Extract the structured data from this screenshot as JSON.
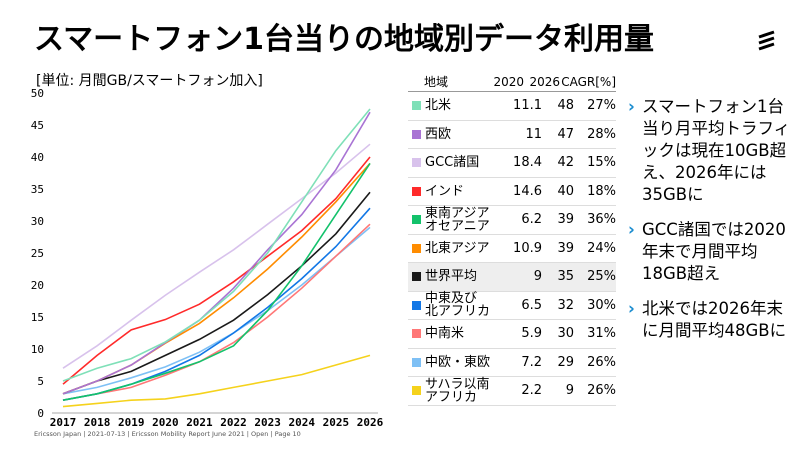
{
  "title": "スマートフォン1台当りの地域別データ利用量",
  "footer": "Ericsson Japan | 2021-07-13 | Ericsson Mobility Report June 2021 | Open | Page 10",
  "table": {
    "headers": [
      "地域",
      "2020",
      "2026",
      "CAGR[%]"
    ],
    "rows": [
      {
        "name": "北米",
        "v2020": "11.1",
        "v2026": "48",
        "cagr": "27%",
        "color": "#7fe0b8"
      },
      {
        "name": "西欧",
        "v2020": "11",
        "v2026": "47",
        "cagr": "28%",
        "color": "#a974d4"
      },
      {
        "name": "GCC諸国",
        "v2020": "18.4",
        "v2026": "42",
        "cagr": "15%",
        "color": "#d8c2ec"
      },
      {
        "name": "インド",
        "v2020": "14.6",
        "v2026": "40",
        "cagr": "18%",
        "color": "#ff2a2a"
      },
      {
        "name": "東南アジア\nオセアニア",
        "v2020": "6.2",
        "v2026": "39",
        "cagr": "36%",
        "color": "#13c26b"
      },
      {
        "name": "北東アジア",
        "v2020": "10.9",
        "v2026": "39",
        "cagr": "24%",
        "color": "#ff8c00"
      },
      {
        "name": "世界平均",
        "v2020": "9",
        "v2026": "35",
        "cagr": "25%",
        "color": "#1a1a1a"
      },
      {
        "name": "中東及び\n北アフリカ",
        "v2020": "6.5",
        "v2026": "32",
        "cagr": "30%",
        "color": "#1277e6"
      },
      {
        "name": "中南米",
        "v2020": "5.9",
        "v2026": "30",
        "cagr": "31%",
        "color": "#ff7777"
      },
      {
        "name": "中欧・東欧",
        "v2020": "7.2",
        "v2026": "29",
        "cagr": "26%",
        "color": "#7ec0f5"
      },
      {
        "name": "サハラ以南\nアフリカ",
        "v2020": "2.2",
        "v2026": "9",
        "cagr": "26%",
        "color": "#f5d21c"
      }
    ]
  },
  "bullets": [
    "スマートフォン1台当り月平均トラフィックは現在10GB超え、2026年には35GBに",
    "GCC諸国では2020年末で月間平均18GB超え",
    "北米では2026年末に月間平均48GBに"
  ],
  "chart_data": {
    "type": "line",
    "title": "スマートフォン1台当りの地域別データ利用量",
    "ylabel": "[単位: 月間GB/スマートフォン加入]",
    "xlabel": "",
    "x": [
      "2017",
      "2018",
      "2019",
      "2020",
      "2021",
      "2022",
      "2023",
      "2024",
      "2025",
      "2026"
    ],
    "ylim": [
      0,
      50
    ],
    "yticks": [
      0,
      5,
      10,
      15,
      20,
      25,
      30,
      35,
      40,
      45,
      50
    ],
    "grid": false,
    "series": [
      {
        "name": "北米",
        "color": "#7fe0b8",
        "values": [
          5,
          7,
          8.5,
          11.1,
          14.5,
          19,
          25,
          33,
          41,
          47.5
        ]
      },
      {
        "name": "西欧",
        "color": "#a974d4",
        "values": [
          3,
          5,
          7.5,
          11,
          14.5,
          19.5,
          25.5,
          31,
          38,
          47
        ]
      },
      {
        "name": "GCC諸国",
        "color": "#d8c2ec",
        "values": [
          7,
          10.5,
          14.5,
          18.4,
          22,
          25.5,
          29.5,
          33.5,
          37.5,
          42
        ]
      },
      {
        "name": "インド",
        "color": "#ff2a2a",
        "values": [
          4.5,
          9,
          13,
          14.6,
          17,
          20.5,
          24.5,
          28.5,
          33.5,
          40
        ]
      },
      {
        "name": "東南アジア オセアニア",
        "color": "#13c26b",
        "values": [
          2,
          3,
          4.5,
          6.2,
          8,
          10.5,
          16,
          23,
          31,
          39
        ]
      },
      {
        "name": "北東アジア",
        "color": "#ff8c00",
        "values": [
          3,
          5,
          7.5,
          10.9,
          14,
          18,
          22.5,
          27.5,
          33,
          39
        ]
      },
      {
        "name": "世界平均",
        "color": "#1a1a1a",
        "values": [
          3,
          5,
          6.5,
          9,
          11.5,
          14.5,
          18.5,
          23,
          28,
          34.5
        ]
      },
      {
        "name": "中東及び北アフリカ",
        "color": "#1277e6",
        "values": [
          2,
          3,
          4.5,
          6.5,
          9,
          12.5,
          16.5,
          21,
          26,
          32
        ]
      },
      {
        "name": "中南米",
        "color": "#ff7777",
        "values": [
          2,
          3,
          4,
          5.9,
          8,
          11,
          15,
          19.5,
          24.5,
          29.5
        ]
      },
      {
        "name": "中欧・東欧",
        "color": "#7ec0f5",
        "values": [
          3,
          4,
          5.5,
          7.2,
          9.5,
          12.5,
          16,
          20,
          24.5,
          29
        ]
      },
      {
        "name": "サハラ以南アフリカ",
        "color": "#f5d21c",
        "values": [
          1,
          1.5,
          2,
          2.2,
          3,
          4,
          5,
          6,
          7.5,
          9
        ]
      }
    ]
  }
}
